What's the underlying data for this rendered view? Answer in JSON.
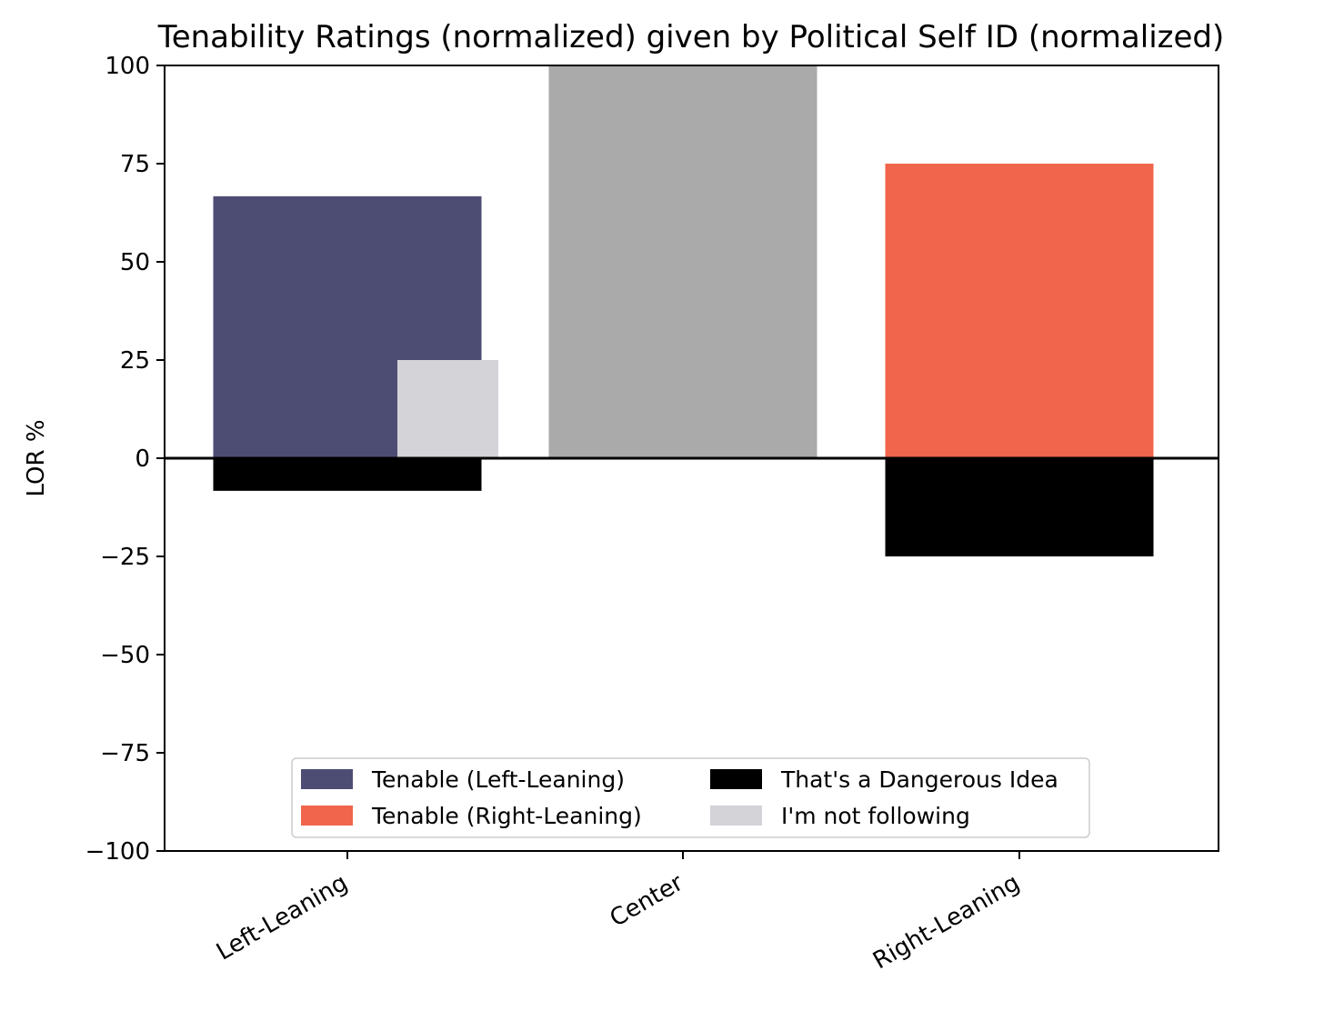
{
  "chart_data": {
    "type": "bar",
    "title": "Tenability Ratings (normalized) given by Political Self ID (normalized)",
    "xlabel": "",
    "ylabel": "LOR %",
    "ylim": [
      -100,
      100
    ],
    "yticks": [
      100,
      75,
      50,
      25,
      0,
      -25,
      -50,
      -75,
      -100
    ],
    "ytick_labels": [
      "100",
      "75",
      "50",
      "25",
      "0",
      "−25",
      "−50",
      "−75",
      "−100"
    ],
    "categories": [
      "Left-Leaning",
      "Center",
      "Right-Leaning"
    ],
    "zero_line": true,
    "bars": [
      {
        "category": "Left-Leaning",
        "series": "Tenable (Left-Leaning)",
        "value": 66.7,
        "color": "#4d4d74",
        "slot": "main"
      },
      {
        "category": "Left-Leaning",
        "series": "That's a Dangerous Idea",
        "value": -8.3,
        "color": "#000000",
        "slot": "main"
      },
      {
        "category": "Left-Leaning",
        "series": "I'm not following",
        "value": 25,
        "color": "#d3d3d8",
        "slot": "offset"
      },
      {
        "category": "Center",
        "series": "Center",
        "value": 100,
        "color": "#aaaaaa",
        "slot": "main"
      },
      {
        "category": "Right-Leaning",
        "series": "Tenable (Right-Leaning)",
        "value": 75,
        "color": "#f0654c",
        "slot": "main"
      },
      {
        "category": "Right-Leaning",
        "series": "That's a Dangerous Idea",
        "value": -25,
        "color": "#000000",
        "slot": "main"
      }
    ],
    "legend": {
      "location": "lower center",
      "columns": 2,
      "entries": [
        {
          "label": "Tenable (Left-Leaning)",
          "color": "#4d4d74"
        },
        {
          "label": "That's a Dangerous Idea",
          "color": "#000000"
        },
        {
          "label": "Tenable (Right-Leaning)",
          "color": "#f0654c"
        },
        {
          "label": "I'm not following",
          "color": "#d3d3d8"
        }
      ]
    }
  }
}
